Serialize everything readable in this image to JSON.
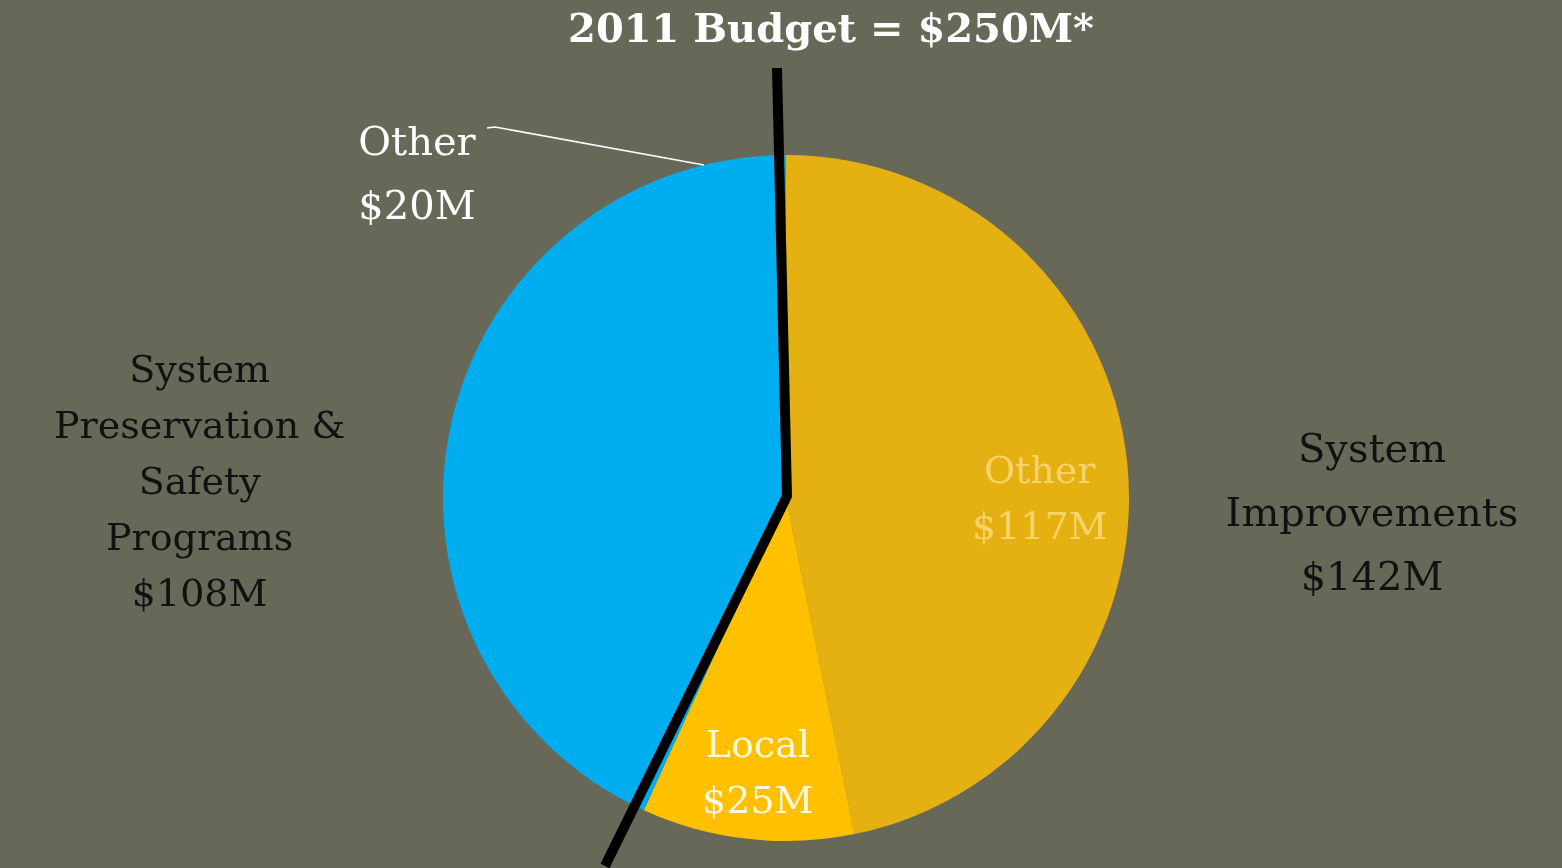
{
  "chart_data": {
    "type": "pie",
    "title": "2011 Budget = $250M*",
    "categories": [
      "Other",
      "Local",
      "System Preservation & Safety Programs"
    ],
    "values": [
      117,
      25,
      108
    ],
    "value_labels": [
      "$117M",
      "$25M",
      "$108M"
    ],
    "colors": [
      "#e5b012",
      "#ffc000",
      "#00aeef"
    ],
    "annotations": [
      "System Improvements $142M",
      "Other $20M"
    ],
    "legend": false
  }
}
